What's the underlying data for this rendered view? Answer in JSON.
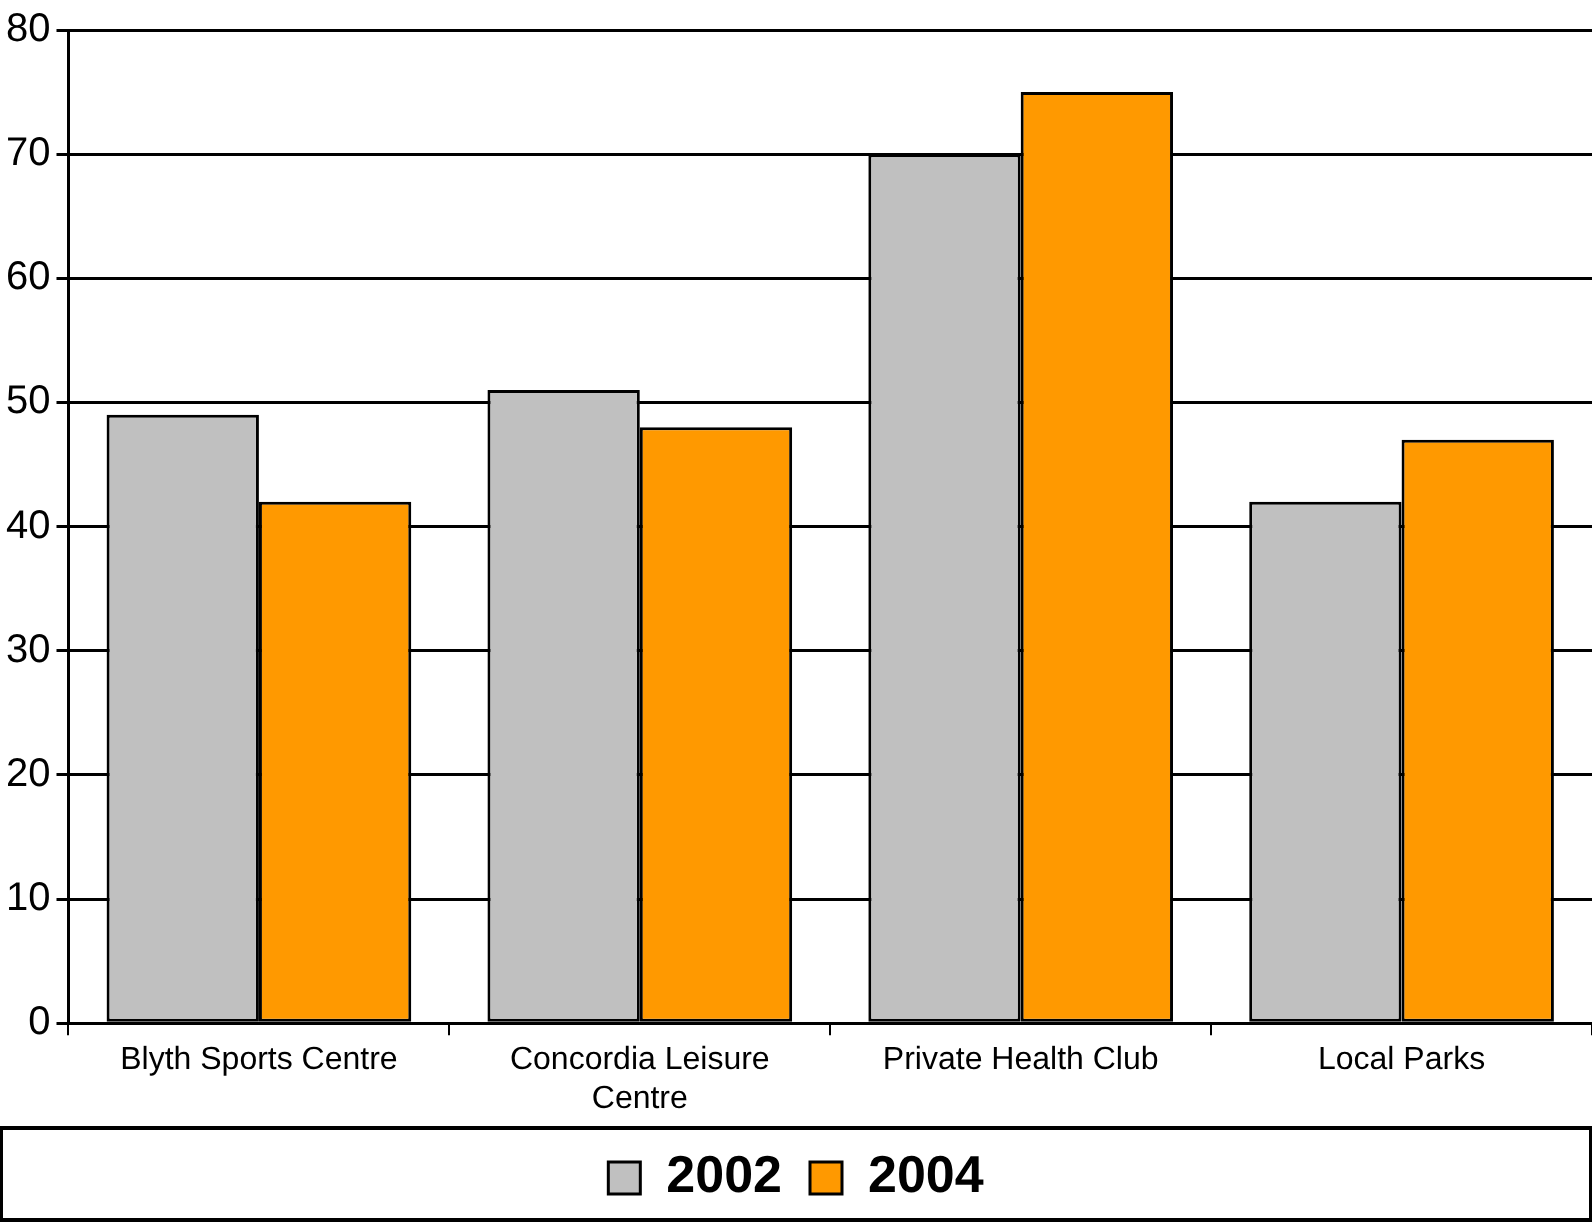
{
  "chart_data": {
    "type": "bar",
    "categories": [
      "Blyth Sports Centre",
      "Concordia Leisure Centre",
      "Private Health Club",
      "Local Parks"
    ],
    "series": [
      {
        "name": "2002",
        "color": "#c0c0c0",
        "values": [
          49,
          51,
          70,
          42
        ]
      },
      {
        "name": "2004",
        "color": "#ff9900",
        "values": [
          42,
          48,
          75,
          47
        ]
      }
    ],
    "ylim": [
      0,
      80
    ],
    "yticks": [
      0,
      10,
      20,
      30,
      40,
      50,
      60,
      70,
      80
    ],
    "grid": "y",
    "legend": "bottom"
  }
}
